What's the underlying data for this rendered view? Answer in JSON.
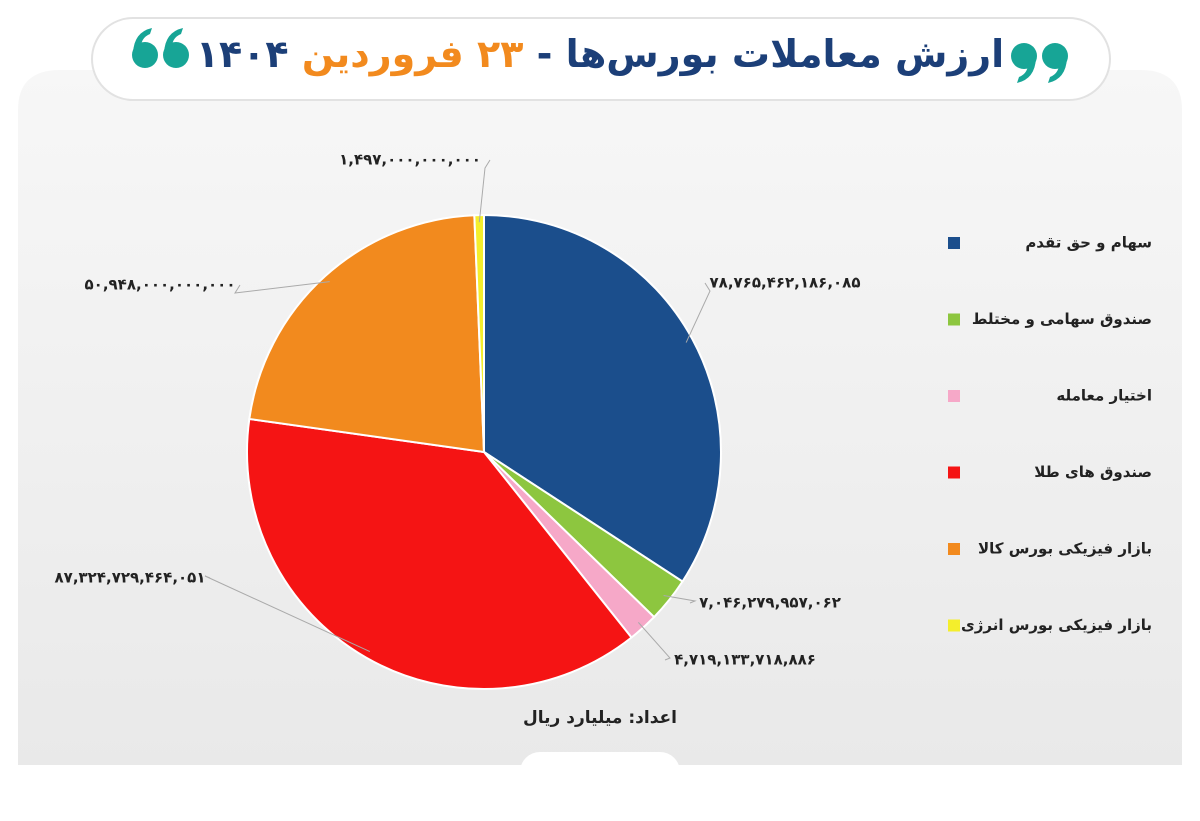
{
  "chart_data": {
    "type": "pie",
    "title_parts": [
      "ارزش معاملات بورس‌ها -",
      "۲۳ فروردین",
      "۱۴۰۴"
    ],
    "note": "اعداد: میلیارد ریال",
    "categories": [
      "سهام و حق تقدم",
      "صندوق سهامی و مختلط",
      "اختیار معامله",
      "صندوق های طلا",
      "بازار فیزیکی بورس کالا",
      "بازار فیزیکی بورس انرژی"
    ],
    "values": [
      78765462186085,
      7046279957062,
      4719133718886,
      87324729464051,
      50948000000000,
      1497000000000
    ],
    "value_labels": [
      "۷۸,۷۶۵,۴۶۲,۱۸۶,۰۸۵",
      "۷,۰۴۶,۲۷۹,۹۵۷,۰۶۲",
      "۴,۷۱۹,۱۳۳,۷۱۸,۸۸۶",
      "۸۷,۳۲۴,۷۲۹,۴۶۴,۰۵۱",
      "۵۰,۹۴۸,۰۰۰,۰۰۰,۰۰۰",
      "۱,۴۹۷,۰۰۰,۰۰۰,۰۰۰"
    ],
    "colors": [
      "#1b4e8c",
      "#8dc63f",
      "#f6a8c8",
      "#f51414",
      "#f28a1e",
      "#f4ee2c"
    ],
    "legend": "right"
  }
}
